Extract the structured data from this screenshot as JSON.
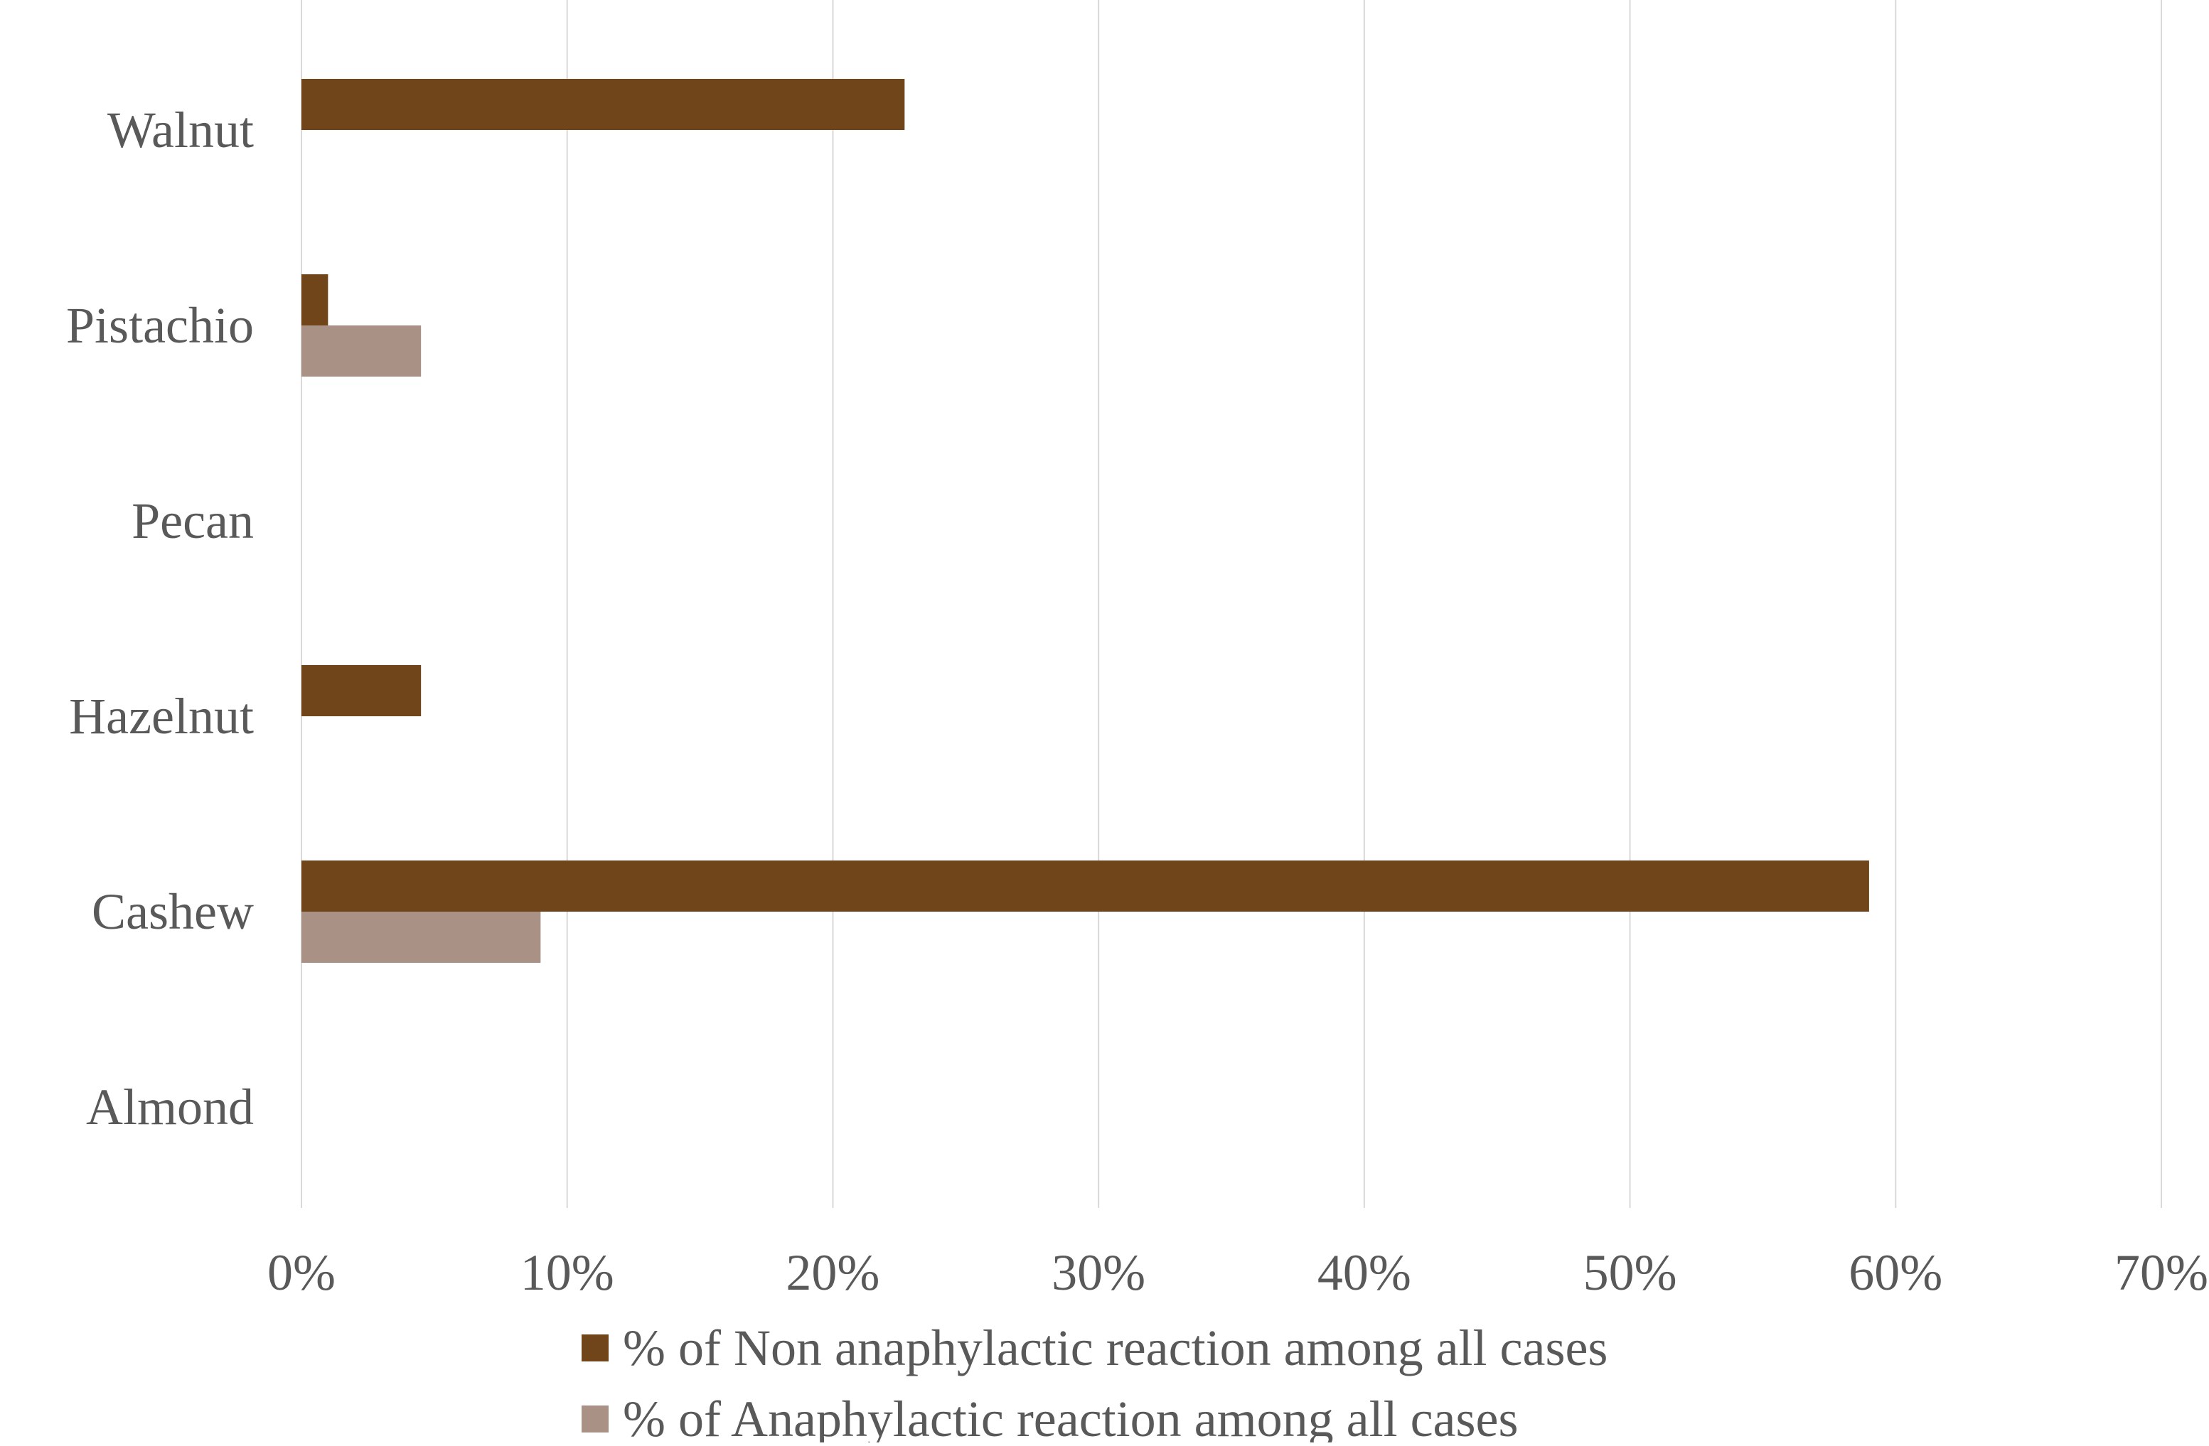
{
  "chart_data": {
    "type": "bar",
    "orientation": "horizontal",
    "categories": [
      "Walnut",
      "Pistachio",
      "Pecan",
      "Hazelnut",
      "Cashew",
      "Almond"
    ],
    "series": [
      {
        "name": "% of Non anaphylactic reaction among all cases",
        "color": "#70451A",
        "values": [
          22.7,
          1.0,
          0,
          4.5,
          59.0,
          0
        ]
      },
      {
        "name": "% of Anaphylactic reaction among all cases",
        "color": "#AA9186",
        "values": [
          0,
          4.5,
          0,
          0,
          9.0,
          0
        ]
      }
    ],
    "xlim": [
      0,
      70
    ],
    "x_ticks": [
      "0%",
      "10%",
      "20%",
      "30%",
      "40%",
      "50%",
      "60%",
      "70%"
    ],
    "grid": "vertical",
    "legend_position": "bottom",
    "text_color": "#595959",
    "grid_color": "#D9D9D9"
  }
}
